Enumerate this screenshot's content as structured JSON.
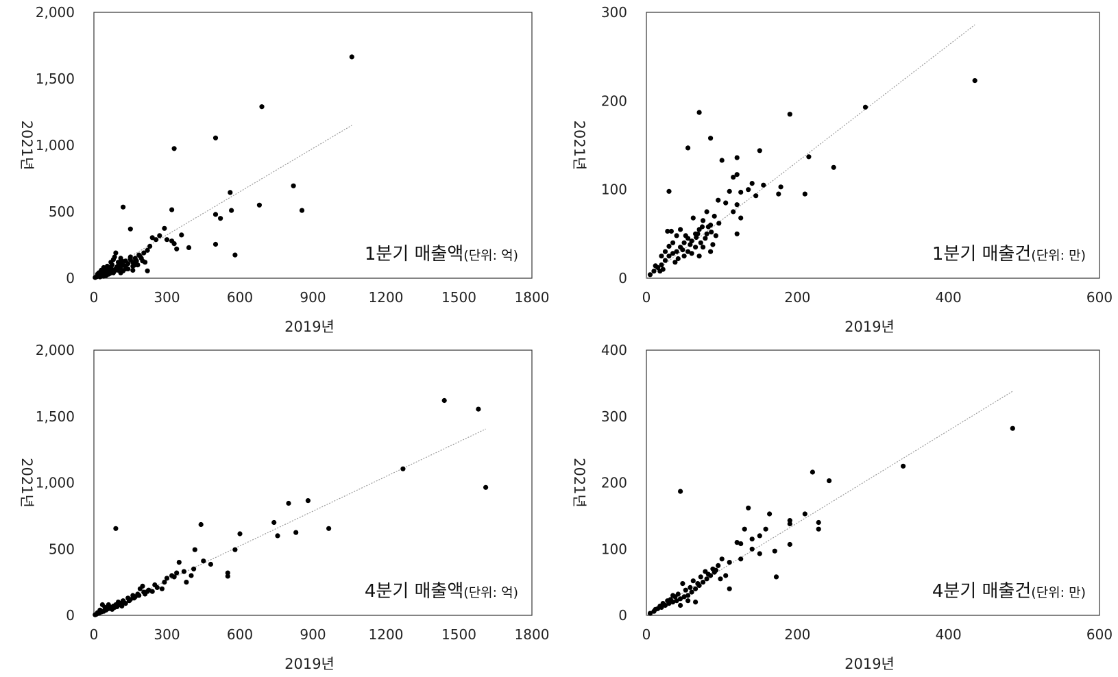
{
  "chart_data": [
    {
      "id": "q1_sales",
      "type": "scatter",
      "annotation": "1분기 매출액",
      "annotation_unit": "(단위: 억)",
      "xlabel": "2019년",
      "ylabel": "2021년",
      "xlim": [
        0,
        1800
      ],
      "ylim": [
        0,
        2000
      ],
      "xticks": [
        "0",
        "300",
        "600",
        "900",
        "1200",
        "1500",
        "1800"
      ],
      "yticks": [
        "0",
        "500",
        "1,000",
        "1,500",
        "2,000"
      ],
      "trendline": [
        [
          0,
          0
        ],
        [
          1060,
          1150
        ]
      ],
      "points": [
        [
          1060,
          1665
        ],
        [
          690,
          1290
        ],
        [
          500,
          1055
        ],
        [
          330,
          975
        ],
        [
          120,
          535
        ],
        [
          320,
          515
        ],
        [
          560,
          645
        ],
        [
          820,
          695
        ],
        [
          855,
          510
        ],
        [
          680,
          550
        ],
        [
          500,
          480
        ],
        [
          520,
          450
        ],
        [
          565,
          510
        ],
        [
          500,
          255
        ],
        [
          580,
          175
        ],
        [
          150,
          370
        ],
        [
          290,
          375
        ],
        [
          360,
          325
        ],
        [
          270,
          320
        ],
        [
          300,
          290
        ],
        [
          320,
          280
        ],
        [
          330,
          260
        ],
        [
          340,
          220
        ],
        [
          390,
          230
        ],
        [
          240,
          305
        ],
        [
          255,
          290
        ],
        [
          230,
          240
        ],
        [
          220,
          210
        ],
        [
          205,
          190
        ],
        [
          185,
          175
        ],
        [
          210,
          120
        ],
        [
          220,
          55
        ],
        [
          195,
          150
        ],
        [
          170,
          150
        ],
        [
          160,
          120
        ],
        [
          150,
          160
        ],
        [
          140,
          110
        ],
        [
          130,
          130
        ],
        [
          120,
          100
        ],
        [
          110,
          150
        ],
        [
          100,
          120
        ],
        [
          95,
          85
        ],
        [
          90,
          190
        ],
        [
          85,
          160
        ],
        [
          80,
          140
        ],
        [
          75,
          100
        ],
        [
          70,
          120
        ],
        [
          65,
          80
        ],
        [
          60,
          60
        ],
        [
          55,
          90
        ],
        [
          50,
          40
        ],
        [
          45,
          70
        ],
        [
          40,
          80
        ],
        [
          35,
          50
        ],
        [
          30,
          30
        ],
        [
          25,
          45
        ],
        [
          20,
          25
        ],
        [
          15,
          15
        ],
        [
          10,
          10
        ],
        [
          5,
          5
        ],
        [
          60,
          30
        ],
        [
          70,
          50
        ],
        [
          80,
          40
        ],
        [
          100,
          60
        ],
        [
          110,
          80
        ],
        [
          130,
          90
        ],
        [
          140,
          70
        ],
        [
          150,
          140
        ],
        [
          160,
          90
        ],
        [
          175,
          130
        ],
        [
          180,
          100
        ],
        [
          190,
          165
        ],
        [
          200,
          130
        ],
        [
          110,
          40
        ],
        [
          120,
          55
        ],
        [
          50,
          20
        ],
        [
          40,
          15
        ],
        [
          90,
          70
        ],
        [
          100,
          95
        ],
        [
          75,
          65
        ],
        [
          130,
          70
        ],
        [
          160,
          60
        ],
        [
          170,
          100
        ],
        [
          30,
          60
        ],
        [
          20,
          40
        ],
        [
          15,
          30
        ],
        [
          45,
          25
        ],
        [
          25,
          10
        ],
        [
          55,
          40
        ],
        [
          65,
          35
        ],
        [
          85,
          55
        ],
        [
          105,
          110
        ],
        [
          115,
          130
        ]
      ]
    },
    {
      "id": "q1_count",
      "type": "scatter",
      "annotation": "1분기 매출건",
      "annotation_unit": "(단위: 만)",
      "xlabel": "2019년",
      "ylabel": "2021년",
      "xlim": [
        0,
        600
      ],
      "ylim": [
        0,
        300
      ],
      "xticks": [
        "0",
        "200",
        "400",
        "600"
      ],
      "yticks": [
        "0",
        "100",
        "200",
        "300"
      ],
      "trendline": [
        [
          0,
          0
        ],
        [
          435,
          286
        ]
      ],
      "points": [
        [
          435,
          223
        ],
        [
          290,
          193
        ],
        [
          190,
          185
        ],
        [
          70,
          187
        ],
        [
          85,
          158
        ],
        [
          55,
          147
        ],
        [
          100,
          133
        ],
        [
          120,
          136
        ],
        [
          150,
          144
        ],
        [
          215,
          137
        ],
        [
          248,
          125
        ],
        [
          210,
          95
        ],
        [
          178,
          103
        ],
        [
          175,
          95
        ],
        [
          145,
          93
        ],
        [
          155,
          105
        ],
        [
          140,
          107
        ],
        [
          135,
          100
        ],
        [
          125,
          97
        ],
        [
          115,
          114
        ],
        [
          120,
          117
        ],
        [
          110,
          98
        ],
        [
          105,
          85
        ],
        [
          95,
          88
        ],
        [
          30,
          98
        ],
        [
          120,
          83
        ],
        [
          115,
          75
        ],
        [
          125,
          68
        ],
        [
          120,
          50
        ],
        [
          90,
          70
        ],
        [
          85,
          60
        ],
        [
          80,
          75
        ],
        [
          75,
          65
        ],
        [
          70,
          55
        ],
        [
          65,
          50
        ],
        [
          60,
          42
        ],
        [
          55,
          45
        ],
        [
          50,
          40
        ],
        [
          45,
          35
        ],
        [
          40,
          30
        ],
        [
          35,
          28
        ],
        [
          30,
          25
        ],
        [
          25,
          20
        ],
        [
          20,
          15
        ],
        [
          15,
          12
        ],
        [
          10,
          8
        ],
        [
          5,
          4
        ],
        [
          62,
          68
        ],
        [
          68,
          50
        ],
        [
          72,
          40
        ],
        [
          78,
          45
        ],
        [
          82,
          58
        ],
        [
          88,
          38
        ],
        [
          92,
          48
        ],
        [
          45,
          55
        ],
        [
          40,
          48
        ],
        [
          35,
          40
        ],
        [
          30,
          36
        ],
        [
          25,
          30
        ],
        [
          20,
          25
        ],
        [
          50,
          25
        ],
        [
          55,
          30
        ],
        [
          60,
          28
        ],
        [
          65,
          35
        ],
        [
          70,
          25
        ],
        [
          75,
          35
        ],
        [
          80,
          50
        ],
        [
          85,
          30
        ],
        [
          28,
          53
        ],
        [
          33,
          53
        ],
        [
          22,
          10
        ],
        [
          18,
          8
        ],
        [
          12,
          14
        ],
        [
          42,
          22
        ],
        [
          38,
          18
        ],
        [
          48,
          32
        ],
        [
          58,
          38
        ],
        [
          52,
          48
        ],
        [
          66,
          46
        ],
        [
          74,
          58
        ],
        [
          86,
          52
        ],
        [
          96,
          62
        ]
      ]
    },
    {
      "id": "q4_sales",
      "type": "scatter",
      "annotation": "4분기 매출액",
      "annotation_unit": "(단위: 억)",
      "xlabel": "2019년",
      "ylabel": "2021년",
      "xlim": [
        0,
        1800
      ],
      "ylim": [
        0,
        2000
      ],
      "xticks": [
        "0",
        "300",
        "600",
        "900",
        "1200",
        "1500",
        "1800"
      ],
      "yticks": [
        "0",
        "500",
        "1,000",
        "1,500",
        "2,000"
      ],
      "trendline": [
        [
          0,
          0
        ],
        [
          1610,
          1405
        ]
      ],
      "points": [
        [
          1440,
          1620
        ],
        [
          1580,
          1555
        ],
        [
          1610,
          965
        ],
        [
          1270,
          1105
        ],
        [
          880,
          865
        ],
        [
          800,
          845
        ],
        [
          740,
          700
        ],
        [
          830,
          625
        ],
        [
          755,
          600
        ],
        [
          965,
          655
        ],
        [
          440,
          685
        ],
        [
          600,
          615
        ],
        [
          580,
          495
        ],
        [
          415,
          495
        ],
        [
          480,
          385
        ],
        [
          450,
          410
        ],
        [
          410,
          350
        ],
        [
          400,
          300
        ],
        [
          380,
          250
        ],
        [
          350,
          400
        ],
        [
          340,
          320
        ],
        [
          320,
          300
        ],
        [
          290,
          250
        ],
        [
          280,
          200
        ],
        [
          250,
          230
        ],
        [
          220,
          180
        ],
        [
          200,
          220
        ],
        [
          180,
          160
        ],
        [
          160,
          150
        ],
        [
          150,
          120
        ],
        [
          140,
          130
        ],
        [
          120,
          110
        ],
        [
          110,
          90
        ],
        [
          100,
          100
        ],
        [
          90,
          80
        ],
        [
          80,
          70
        ],
        [
          70,
          60
        ],
        [
          60,
          50
        ],
        [
          50,
          40
        ],
        [
          40,
          30
        ],
        [
          30,
          25
        ],
        [
          20,
          15
        ],
        [
          10,
          8
        ],
        [
          5,
          4
        ],
        [
          90,
          655
        ],
        [
          550,
          320
        ],
        [
          550,
          295
        ],
        [
          240,
          180
        ],
        [
          260,
          210
        ],
        [
          300,
          280
        ],
        [
          210,
          160
        ],
        [
          190,
          200
        ],
        [
          170,
          140
        ],
        [
          130,
          90
        ],
        [
          115,
          70
        ],
        [
          60,
          80
        ],
        [
          45,
          60
        ],
        [
          35,
          80
        ],
        [
          25,
          40
        ],
        [
          15,
          20
        ],
        [
          75,
          45
        ],
        [
          85,
          60
        ],
        [
          95,
          65
        ],
        [
          105,
          80
        ],
        [
          125,
          95
        ],
        [
          145,
          110
        ],
        [
          165,
          130
        ],
        [
          185,
          150
        ],
        [
          205,
          175
        ],
        [
          225,
          190
        ],
        [
          330,
          290
        ],
        [
          370,
          330
        ]
      ]
    },
    {
      "id": "q4_count",
      "type": "scatter",
      "annotation": "4분기 매출건",
      "annotation_unit": "(단위: 만)",
      "xlabel": "2019년",
      "ylabel": "2021년",
      "xlim": [
        0,
        600
      ],
      "ylim": [
        0,
        400
      ],
      "xticks": [
        "0",
        "200",
        "400",
        "600"
      ],
      "yticks": [
        "0",
        "100",
        "200",
        "300",
        "400"
      ],
      "trendline": [
        [
          0,
          0
        ],
        [
          485,
          338
        ]
      ],
      "points": [
        [
          485,
          282
        ],
        [
          340,
          225
        ],
        [
          45,
          187
        ],
        [
          220,
          216
        ],
        [
          242,
          203
        ],
        [
          228,
          140
        ],
        [
          228,
          130
        ],
        [
          210,
          153
        ],
        [
          190,
          143
        ],
        [
          190,
          138
        ],
        [
          190,
          107
        ],
        [
          172,
          58
        ],
        [
          170,
          97
        ],
        [
          163,
          153
        ],
        [
          150,
          93
        ],
        [
          158,
          130
        ],
        [
          150,
          120
        ],
        [
          140,
          115
        ],
        [
          135,
          162
        ],
        [
          130,
          130
        ],
        [
          125,
          108
        ],
        [
          120,
          110
        ],
        [
          110,
          80
        ],
        [
          100,
          85
        ],
        [
          95,
          75
        ],
        [
          90,
          65
        ],
        [
          85,
          60
        ],
        [
          80,
          55
        ],
        [
          75,
          50
        ],
        [
          70,
          45
        ],
        [
          65,
          40
        ],
        [
          60,
          35
        ],
        [
          55,
          30
        ],
        [
          50,
          28
        ],
        [
          45,
          25
        ],
        [
          40,
          22
        ],
        [
          35,
          20
        ],
        [
          30,
          18
        ],
        [
          25,
          15
        ],
        [
          20,
          12
        ],
        [
          15,
          10
        ],
        [
          10,
          6
        ],
        [
          5,
          3
        ],
        [
          125,
          85
        ],
        [
          140,
          100
        ],
        [
          105,
          60
        ],
        [
          110,
          40
        ],
        [
          98,
          55
        ],
        [
          92,
          68
        ],
        [
          88,
          70
        ],
        [
          82,
          62
        ],
        [
          78,
          66
        ],
        [
          72,
          58
        ],
        [
          68,
          48
        ],
        [
          62,
          52
        ],
        [
          58,
          42
        ],
        [
          52,
          38
        ],
        [
          48,
          48
        ],
        [
          42,
          32
        ],
        [
          38,
          28
        ],
        [
          32,
          24
        ],
        [
          28,
          22
        ],
        [
          22,
          18
        ],
        [
          18,
          14
        ],
        [
          12,
          9
        ],
        [
          65,
          20
        ],
        [
          55,
          22
        ],
        [
          45,
          15
        ],
        [
          35,
          30
        ]
      ]
    }
  ]
}
